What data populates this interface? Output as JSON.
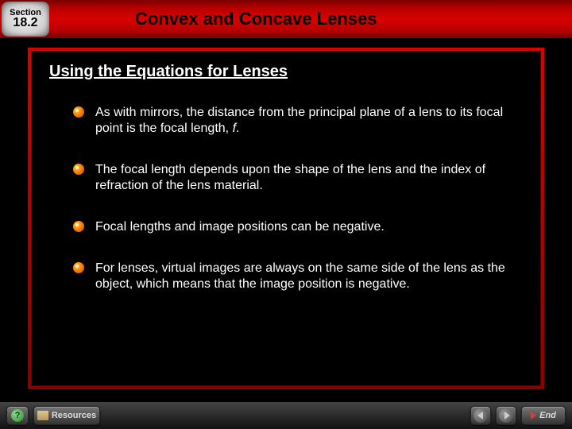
{
  "header": {
    "section_label": "Section",
    "section_number": "18.2",
    "title": "Convex and Concave Lenses"
  },
  "subtitle": "Using the Equations for Lenses",
  "bullets": [
    "As with mirrors, the distance from the principal plane of a lens to its focal point is the focal length, <i>f</i>.",
    "The focal length depends upon the shape of the lens and the index of refraction of the lens material.",
    "Focal lengths and image positions can be negative.",
    "For lenses, virtual images are always on the same side of the lens as the object, which means that the image position is negative."
  ],
  "footer": {
    "help": "?",
    "resources": "Resources",
    "end": "End"
  },
  "colors": {
    "header_gradient_mid": "#d90000",
    "bullet_fill": "#ff8800",
    "text": "#ffffff",
    "background": "#000000"
  }
}
